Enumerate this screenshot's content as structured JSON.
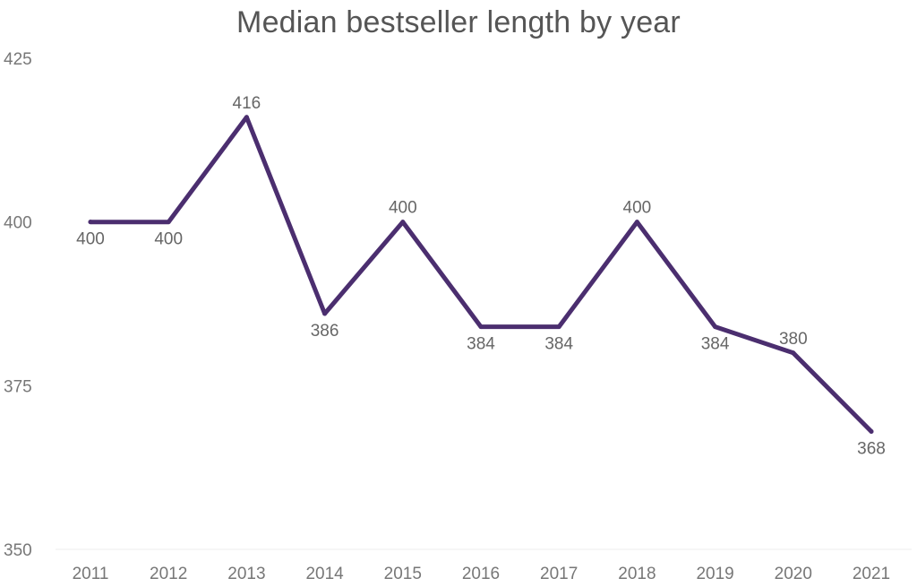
{
  "chart_data": {
    "type": "line",
    "title": "Median bestseller length by year",
    "xlabel": "",
    "ylabel": "",
    "categories": [
      "2011",
      "2012",
      "2013",
      "2014",
      "2015",
      "2016",
      "2017",
      "2018",
      "2019",
      "2020",
      "2021"
    ],
    "series": [
      {
        "values": [
          400,
          400,
          416,
          386,
          400,
          384,
          384,
          400,
          384,
          380,
          368
        ]
      }
    ],
    "data_label_positions": [
      "below",
      "below",
      "above",
      "below",
      "above",
      "below",
      "below",
      "above",
      "below",
      "above",
      "below"
    ],
    "ylim": [
      350,
      425
    ],
    "yticks": [
      "350",
      "375",
      "400",
      "425"
    ],
    "grid": false,
    "legend": "none",
    "line_color": "#4b2e6f"
  }
}
